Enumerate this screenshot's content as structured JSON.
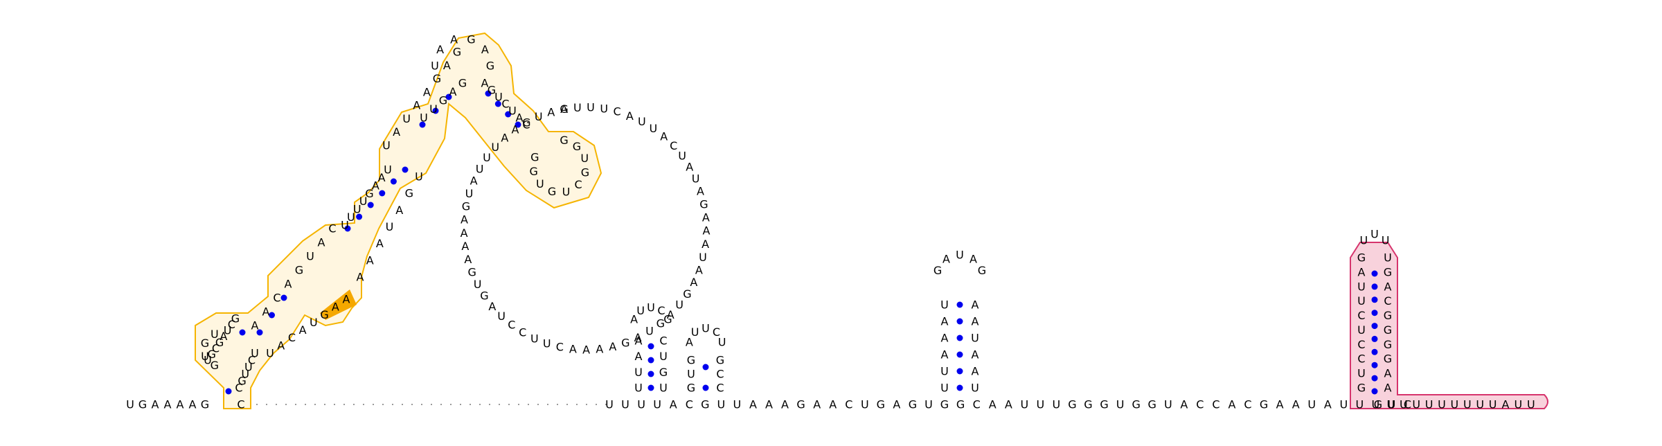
{
  "colors": {
    "domain1_stroke": "#f5b400",
    "domain1_fill": "#fff6e0",
    "domain1_highlight": "#f5a800",
    "domain2_stroke": "#d6336c",
    "domain2_fill": "#f8d2dc",
    "pair_dot": "#0000ee",
    "backbone": "#9a9a9a",
    "letters": "#000000"
  },
  "strands": {
    "left_tail": "UGAAAAG",
    "left_tail_right": "C",
    "middle": "UUUUACGUUAAAGAACUGAGUGGCAAUUUGGGUGGUACCACGAAUAUUUUC",
    "right_tail": "GUUUUUUUUUAUU"
  },
  "hairpins": {
    "h1_left": "UUAA",
    "h1_right": "UGUC",
    "h1_loop": "AUUCG",
    "h2_left": "GUG",
    "h2_right": "CCG",
    "h3_left": "UUAAAU",
    "h3_right": "UAAUAA",
    "h3_loop": "GAUAG",
    "h4_left": "GUCCUCUUAG",
    "h4_right": "AAGGGGCAGU",
    "h4_loop": "UUU"
  },
  "domain1": {
    "a_left": "UGCGAUCG",
    "a_right": "CGUUCU",
    "a_loop": "GUGU",
    "b_left": "AACAGUAC",
    "b_right": "UACAUGAA",
    "c_left": "UUUUGAAU",
    "c_right": "AAAUAGU",
    "d_left": "UAUAAGAG",
    "d_right": "UUGAG",
    "e_left": "AGUCUAC",
    "e_loop": "GGUGCUGUGG",
    "big_loop": "AUUUCAUUACUAUAGAAAUAAGUAGUAGAAAACUUCCUAGUGAAAAGUAUUUAAGUAG"
  }
}
